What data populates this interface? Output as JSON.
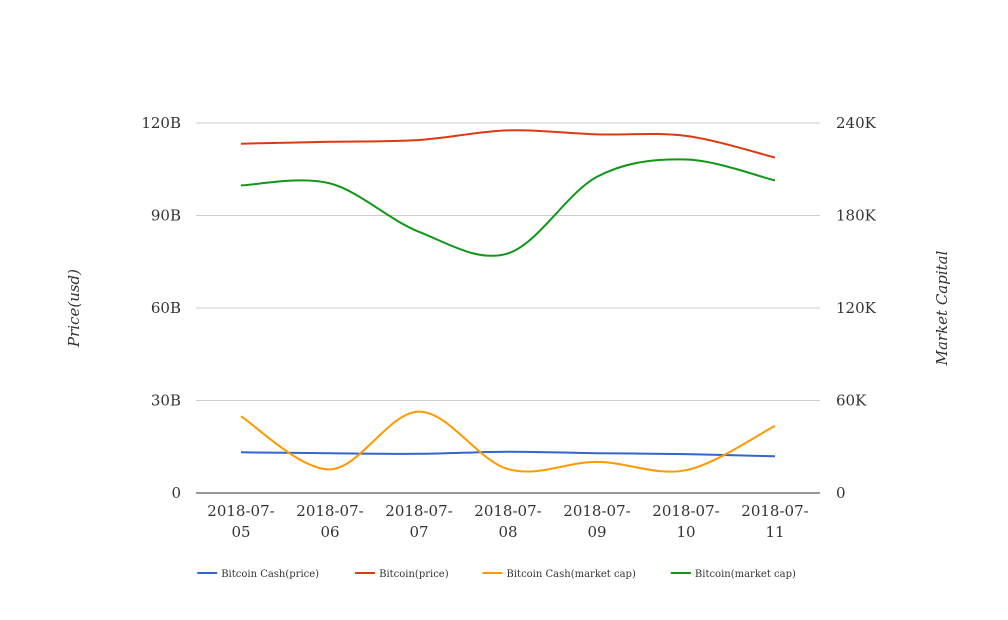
{
  "chart_data": {
    "type": "line",
    "title": "",
    "categories": [
      [
        "2018-07-",
        "05"
      ],
      [
        "2018-07-",
        "06"
      ],
      [
        "2018-07-",
        "07"
      ],
      [
        "2018-07-",
        "08"
      ],
      [
        "2018-07-",
        "09"
      ],
      [
        "2018-07-",
        "10"
      ],
      [
        "2018-07-",
        "11"
      ]
    ],
    "y_left": {
      "label": "Price(usd)",
      "ticks": [
        "0",
        "30B",
        "60B",
        "90B",
        "120B"
      ],
      "tick_values": [
        0,
        30,
        60,
        90,
        120
      ],
      "range": [
        0,
        120
      ],
      "unit": "B"
    },
    "y_right": {
      "label": "Market Capital",
      "ticks": [
        "0",
        "60K",
        "120K",
        "180K",
        "240K"
      ],
      "tick_values": [
        0,
        60,
        120,
        180,
        240
      ],
      "range": [
        0,
        240
      ],
      "unit": "K"
    },
    "grid": true,
    "legend_position": "bottom",
    "series": [
      {
        "name": "Bitcoin Cash(price)",
        "axis": "left",
        "color": "#3366cc",
        "values": [
          13.2,
          12.9,
          12.7,
          13.4,
          12.9,
          12.6,
          11.9
        ]
      },
      {
        "name": "Bitcoin(price)",
        "axis": "left",
        "color": "#dc3912",
        "values": [
          113.3,
          113.9,
          114.5,
          117.6,
          116.3,
          115.8,
          108.8
        ]
      },
      {
        "name": "Bitcoin Cash(market cap)",
        "axis": "right",
        "color": "#ff9900",
        "values": [
          49.7,
          15.3,
          52.8,
          15.5,
          20.2,
          14.8,
          43.5
        ]
      },
      {
        "name": "Bitcoin(market cap)",
        "axis": "right",
        "color": "#109618",
        "values": [
          199.5,
          200.8,
          169.4,
          155.4,
          205.1,
          216.3,
          202.7
        ]
      }
    ]
  }
}
